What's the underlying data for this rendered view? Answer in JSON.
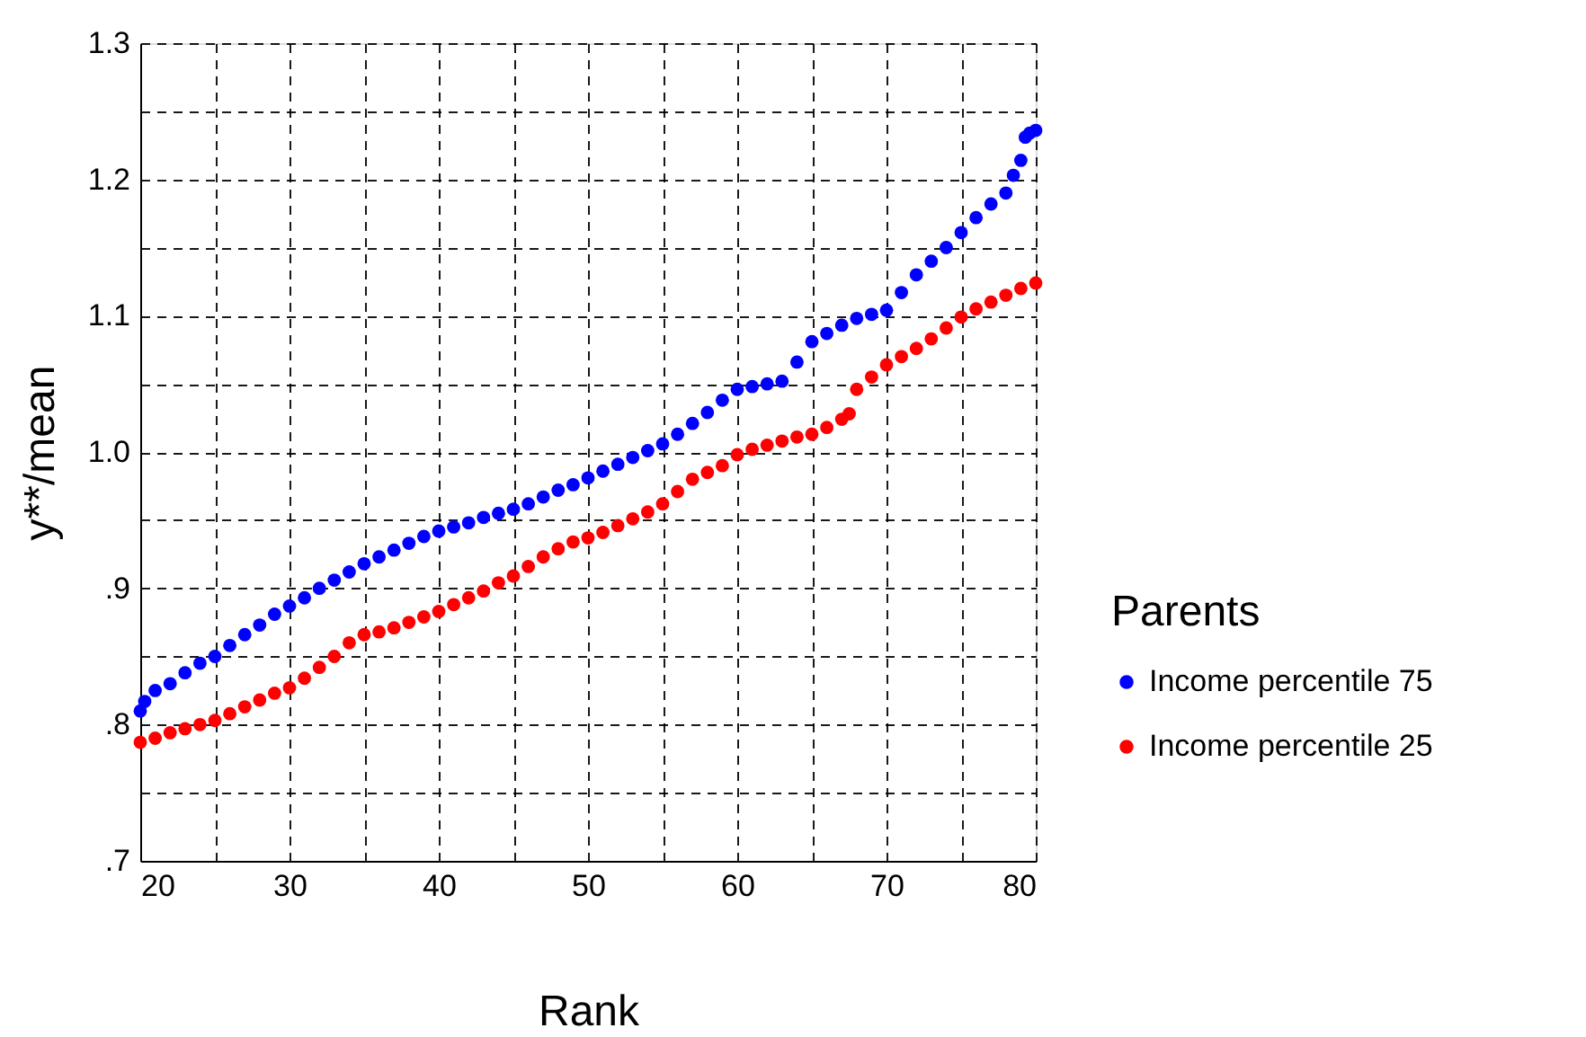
{
  "chart_data": {
    "type": "scatter",
    "xlabel": "Rank",
    "ylabel": "y**/mean",
    "legend_title": "Parents",
    "legend": "right",
    "grid": true,
    "marker": "circle",
    "xlim": [
      20,
      80
    ],
    "ylim": [
      0.7,
      1.3
    ],
    "xticks": [
      20,
      {
        "value": 25,
        "label": null
      },
      30,
      {
        "value": 35,
        "label": null
      },
      40,
      {
        "value": 45,
        "label": null
      },
      50,
      {
        "value": 55,
        "label": null
      },
      60,
      {
        "value": 65,
        "label": null
      },
      70,
      {
        "value": 75,
        "label": null
      },
      80
    ],
    "yticks": [
      {
        "value": 0.7,
        "label": ".7"
      },
      {
        "value": 0.75,
        "label": null
      },
      {
        "value": 0.8,
        "label": ".8"
      },
      {
        "value": 0.85,
        "label": null
      },
      {
        "value": 0.9,
        "label": ".9"
      },
      {
        "value": 0.95,
        "label": null
      },
      {
        "value": 1.0,
        "label": "1.0"
      },
      {
        "value": 1.05,
        "label": null
      },
      {
        "value": 1.1,
        "label": "1.1"
      },
      {
        "value": 1.15,
        "label": null
      },
      {
        "value": 1.2,
        "label": "1.2"
      },
      {
        "value": 1.25,
        "label": null
      },
      {
        "value": 1.3,
        "label": "1.3"
      }
    ],
    "series": [
      {
        "name": "Income percentile 75",
        "color": "#0000ff",
        "x": [
          20,
          20.3,
          21,
          22,
          23,
          24,
          25,
          26,
          27,
          28,
          29,
          30,
          31,
          32,
          33,
          34,
          35,
          36,
          37,
          38,
          39,
          40,
          41,
          42,
          43,
          44,
          45,
          46,
          47,
          48,
          49,
          50,
          51,
          52,
          53,
          54,
          55,
          56,
          57,
          58,
          59,
          60,
          61,
          62,
          63,
          64,
          65,
          66,
          67,
          68,
          69,
          70,
          71,
          72,
          73,
          74,
          75,
          76,
          77,
          78,
          78.5,
          79,
          79.3,
          79.6,
          80
        ],
        "values": [
          0.81,
          0.817,
          0.825,
          0.83,
          0.838,
          0.845,
          0.85,
          0.858,
          0.866,
          0.873,
          0.881,
          0.887,
          0.893,
          0.9,
          0.906,
          0.912,
          0.918,
          0.923,
          0.928,
          0.933,
          0.938,
          0.942,
          0.945,
          0.948,
          0.952,
          0.955,
          0.958,
          0.962,
          0.967,
          0.972,
          0.976,
          0.981,
          0.986,
          0.991,
          0.996,
          1.001,
          1.006,
          1.013,
          1.021,
          1.029,
          1.038,
          1.046,
          1.048,
          1.05,
          1.052,
          1.066,
          1.081,
          1.087,
          1.093,
          1.098,
          1.101,
          1.104,
          1.117,
          1.13,
          1.14,
          1.15,
          1.161,
          1.172,
          1.182,
          1.19,
          1.203,
          1.214,
          1.231,
          1.234,
          1.236
        ]
      },
      {
        "name": "Income percentile 25",
        "color": "#ff0000",
        "x": [
          20,
          21,
          22,
          23,
          24,
          25,
          26,
          27,
          28,
          29,
          30,
          31,
          32,
          33,
          34,
          35,
          36,
          37,
          38,
          39,
          40,
          41,
          42,
          43,
          44,
          45,
          46,
          47,
          48,
          49,
          50,
          51,
          52,
          53,
          54,
          55,
          56,
          57,
          58,
          59,
          60,
          61,
          62,
          63,
          64,
          65,
          66,
          67,
          67.5,
          68,
          69,
          70,
          71,
          72,
          73,
          74,
          75,
          76,
          77,
          78,
          79,
          80
        ],
        "values": [
          0.787,
          0.79,
          0.794,
          0.797,
          0.8,
          0.803,
          0.808,
          0.813,
          0.818,
          0.823,
          0.827,
          0.834,
          0.842,
          0.85,
          0.86,
          0.866,
          0.868,
          0.871,
          0.875,
          0.879,
          0.883,
          0.888,
          0.893,
          0.898,
          0.904,
          0.909,
          0.916,
          0.923,
          0.929,
          0.934,
          0.937,
          0.941,
          0.946,
          0.951,
          0.956,
          0.962,
          0.971,
          0.98,
          0.985,
          0.99,
          0.998,
          1.002,
          1.005,
          1.008,
          1.011,
          1.013,
          1.018,
          1.024,
          1.028,
          1.046,
          1.055,
          1.064,
          1.07,
          1.076,
          1.083,
          1.091,
          1.099,
          1.105,
          1.11,
          1.115,
          1.12,
          1.124
        ]
      }
    ]
  }
}
